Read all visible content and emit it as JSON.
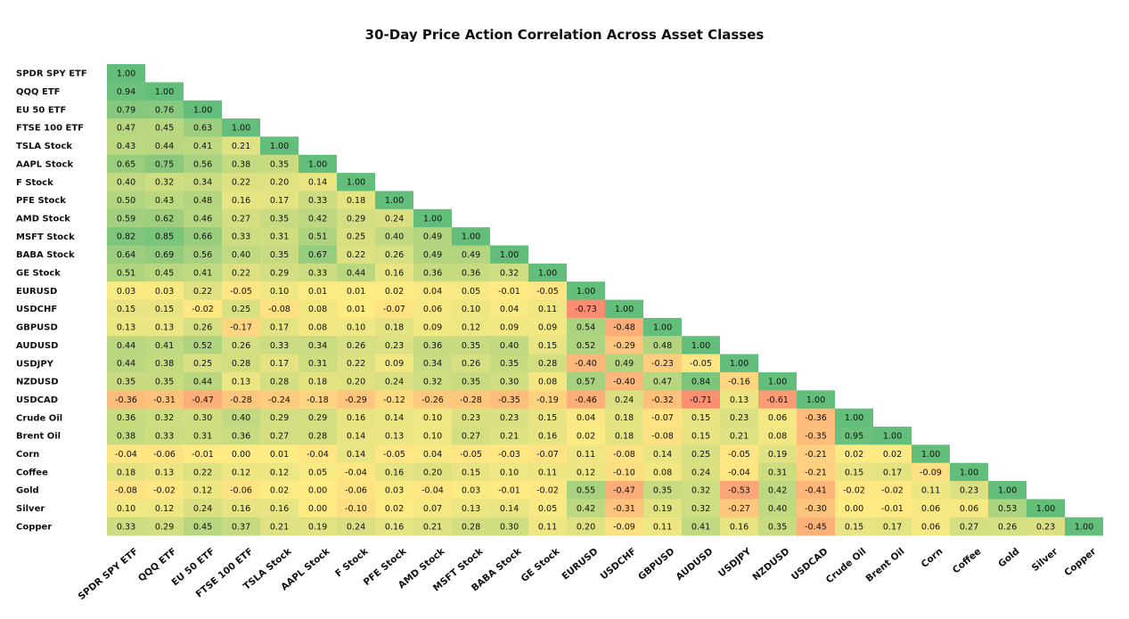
{
  "chart_data": {
    "type": "heatmap",
    "title": "30-Day Price Action Correlation Across Asset Classes",
    "layout": "lower-triangular",
    "labels": [
      "SPDR SPY ETF",
      "QQQ ETF",
      "EU 50 ETF",
      "FTSE 100 ETF",
      "TSLA Stock",
      "AAPL Stock",
      "F Stock",
      "PFE Stock",
      "AMD Stock",
      "MSFT Stock",
      "BABA Stock",
      "GE Stock",
      "EURUSD",
      "USDCHF",
      "GBPUSD",
      "AUDUSD",
      "USDJPY",
      "NZDUSD",
      "USDCAD",
      "Crude Oil",
      "Brent Oil",
      "Corn",
      "Coffee",
      "Gold",
      "Silver",
      "Copper"
    ],
    "value_range": [
      -1,
      1
    ],
    "color_scale": {
      "negative": "#f8696b",
      "mid": "#ffeb84",
      "positive": "#63be7b"
    },
    "matrix": [
      [
        1.0
      ],
      [
        0.94,
        1.0
      ],
      [
        0.79,
        0.76,
        1.0
      ],
      [
        0.47,
        0.45,
        0.63,
        1.0
      ],
      [
        0.43,
        0.44,
        0.41,
        0.21,
        1.0
      ],
      [
        0.65,
        0.75,
        0.56,
        0.38,
        0.35,
        1.0
      ],
      [
        0.4,
        0.32,
        0.34,
        0.22,
        0.2,
        0.14,
        1.0
      ],
      [
        0.5,
        0.43,
        0.48,
        0.16,
        0.17,
        0.33,
        0.18,
        1.0
      ],
      [
        0.59,
        0.62,
        0.46,
        0.27,
        0.35,
        0.42,
        0.29,
        0.24,
        1.0
      ],
      [
        0.82,
        0.85,
        0.66,
        0.33,
        0.31,
        0.51,
        0.25,
        0.4,
        0.49,
        1.0
      ],
      [
        0.64,
        0.69,
        0.56,
        0.4,
        0.35,
        0.67,
        0.22,
        0.26,
        0.49,
        0.49,
        1.0
      ],
      [
        0.51,
        0.45,
        0.41,
        0.22,
        0.29,
        0.33,
        0.44,
        0.16,
        0.36,
        0.36,
        0.32,
        1.0
      ],
      [
        0.03,
        0.03,
        0.22,
        -0.05,
        0.1,
        0.01,
        0.01,
        0.02,
        0.04,
        0.05,
        -0.01,
        -0.05,
        1.0
      ],
      [
        0.15,
        0.15,
        -0.02,
        0.25,
        -0.08,
        0.08,
        0.01,
        -0.07,
        0.06,
        0.1,
        0.04,
        0.11,
        -0.73,
        1.0
      ],
      [
        0.13,
        0.13,
        0.26,
        -0.17,
        0.17,
        0.08,
        0.1,
        0.18,
        0.09,
        0.12,
        0.09,
        0.09,
        0.54,
        -0.48,
        1.0
      ],
      [
        0.44,
        0.41,
        0.52,
        0.26,
        0.33,
        0.34,
        0.26,
        0.23,
        0.36,
        0.35,
        0.4,
        0.15,
        0.52,
        -0.29,
        0.48,
        1.0
      ],
      [
        0.44,
        0.38,
        0.25,
        0.28,
        0.17,
        0.31,
        0.22,
        0.09,
        0.34,
        0.26,
        0.35,
        0.28,
        -0.4,
        0.49,
        -0.23,
        -0.05,
        1.0
      ],
      [
        0.35,
        0.35,
        0.44,
        0.13,
        0.28,
        0.18,
        0.2,
        0.24,
        0.32,
        0.35,
        0.3,
        0.08,
        0.57,
        -0.4,
        0.47,
        0.84,
        -0.16,
        1.0
      ],
      [
        -0.36,
        -0.31,
        -0.47,
        -0.28,
        -0.24,
        -0.18,
        -0.29,
        -0.12,
        -0.26,
        -0.28,
        -0.35,
        -0.19,
        -0.46,
        0.24,
        -0.32,
        -0.71,
        0.13,
        -0.61,
        1.0
      ],
      [
        0.36,
        0.32,
        0.3,
        0.4,
        0.29,
        0.29,
        0.16,
        0.14,
        0.1,
        0.23,
        0.23,
        0.15,
        0.04,
        0.18,
        -0.07,
        0.15,
        0.23,
        0.06,
        -0.36,
        1.0
      ],
      [
        0.38,
        0.33,
        0.31,
        0.36,
        0.27,
        0.28,
        0.14,
        0.13,
        0.1,
        0.27,
        0.21,
        0.16,
        0.02,
        0.18,
        -0.08,
        0.15,
        0.21,
        0.08,
        -0.35,
        0.95,
        1.0
      ],
      [
        -0.04,
        -0.06,
        -0.01,
        0.0,
        0.01,
        -0.04,
        0.14,
        -0.05,
        0.04,
        -0.05,
        -0.03,
        -0.07,
        0.11,
        -0.08,
        0.14,
        0.25,
        -0.05,
        0.19,
        -0.21,
        0.02,
        0.02,
        1.0
      ],
      [
        0.18,
        0.13,
        0.22,
        0.12,
        0.12,
        0.05,
        -0.04,
        0.16,
        0.2,
        0.15,
        0.1,
        0.11,
        0.12,
        -0.1,
        0.08,
        0.24,
        -0.04,
        0.31,
        -0.21,
        0.15,
        0.17,
        -0.09,
        1.0
      ],
      [
        -0.08,
        -0.02,
        0.12,
        -0.06,
        0.02,
        0.0,
        -0.06,
        0.03,
        -0.04,
        0.03,
        -0.01,
        -0.02,
        0.55,
        -0.47,
        0.35,
        0.32,
        -0.53,
        0.42,
        -0.41,
        -0.02,
        -0.02,
        0.11,
        0.23,
        1.0
      ],
      [
        0.1,
        0.12,
        0.24,
        0.16,
        0.16,
        0.0,
        -0.1,
        0.02,
        0.07,
        0.13,
        0.14,
        0.05,
        0.42,
        -0.31,
        0.19,
        0.32,
        -0.27,
        0.4,
        -0.3,
        0.0,
        -0.01,
        0.06,
        0.06,
        0.53,
        1.0
      ],
      [
        0.33,
        0.29,
        0.45,
        0.37,
        0.21,
        0.19,
        0.24,
        0.16,
        0.21,
        0.28,
        0.3,
        0.11,
        0.2,
        -0.09,
        0.11,
        0.41,
        0.16,
        0.35,
        -0.45,
        0.15,
        0.17,
        0.06,
        0.27,
        0.26,
        0.23,
        1.0
      ]
    ]
  }
}
